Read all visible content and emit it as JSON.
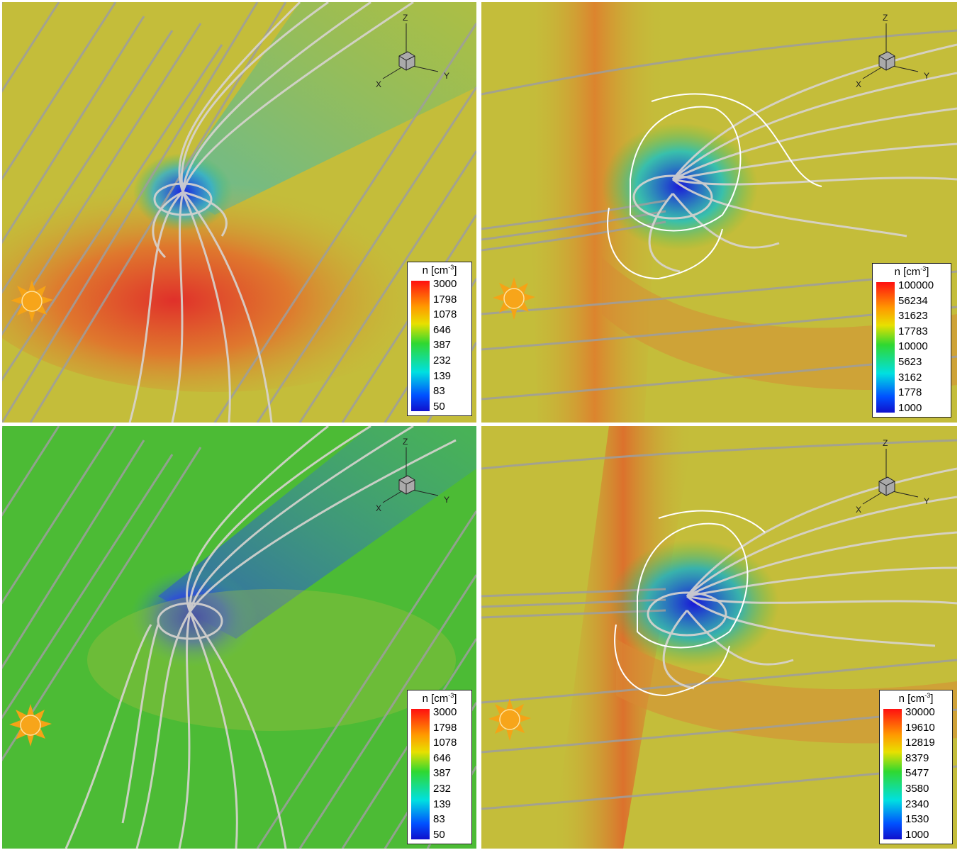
{
  "panels": [
    {
      "legend": {
        "title": "n [cm",
        "title_sup": "-3",
        "title_end": "]",
        "ticks": [
          "3000",
          "1798",
          "1078",
          "646",
          "387",
          "232",
          "139",
          "83",
          "50"
        ]
      },
      "axes": {
        "x": "X",
        "y": "Y",
        "z": "Z"
      }
    },
    {
      "legend": {
        "title": "n [cm",
        "title_sup": "-3",
        "title_end": "]",
        "ticks": [
          "100000",
          "56234",
          "31623",
          "17783",
          "10000",
          "5623",
          "3162",
          "1778",
          "1000"
        ]
      },
      "axes": {
        "x": "X",
        "y": "Y",
        "z": "Z"
      }
    },
    {
      "legend": {
        "title": "n [cm",
        "title_sup": "-3",
        "title_end": "]",
        "ticks": [
          "3000",
          "1798",
          "1078",
          "646",
          "387",
          "232",
          "139",
          "83",
          "50"
        ]
      },
      "axes": {
        "x": "X",
        "y": "Y",
        "z": "Z"
      }
    },
    {
      "legend": {
        "title": "n [cm",
        "title_sup": "-3",
        "title_end": "]",
        "ticks": [
          "30000",
          "19610",
          "12819",
          "8379",
          "5477",
          "3580",
          "2340",
          "1530",
          "1000"
        ]
      },
      "axes": {
        "x": "X",
        "y": "Y",
        "z": "Z"
      }
    }
  ],
  "colors": {
    "background_yellow": "#c4bd3a",
    "background_green": "#4cbb35",
    "density_high": "#e03a2a",
    "density_low": "#1c20d0",
    "field_line": "#a8a8a8",
    "sun": "#f5a316"
  },
  "icons": {
    "sun": "sun-icon",
    "axes": "xyz-axis-triad-icon"
  }
}
